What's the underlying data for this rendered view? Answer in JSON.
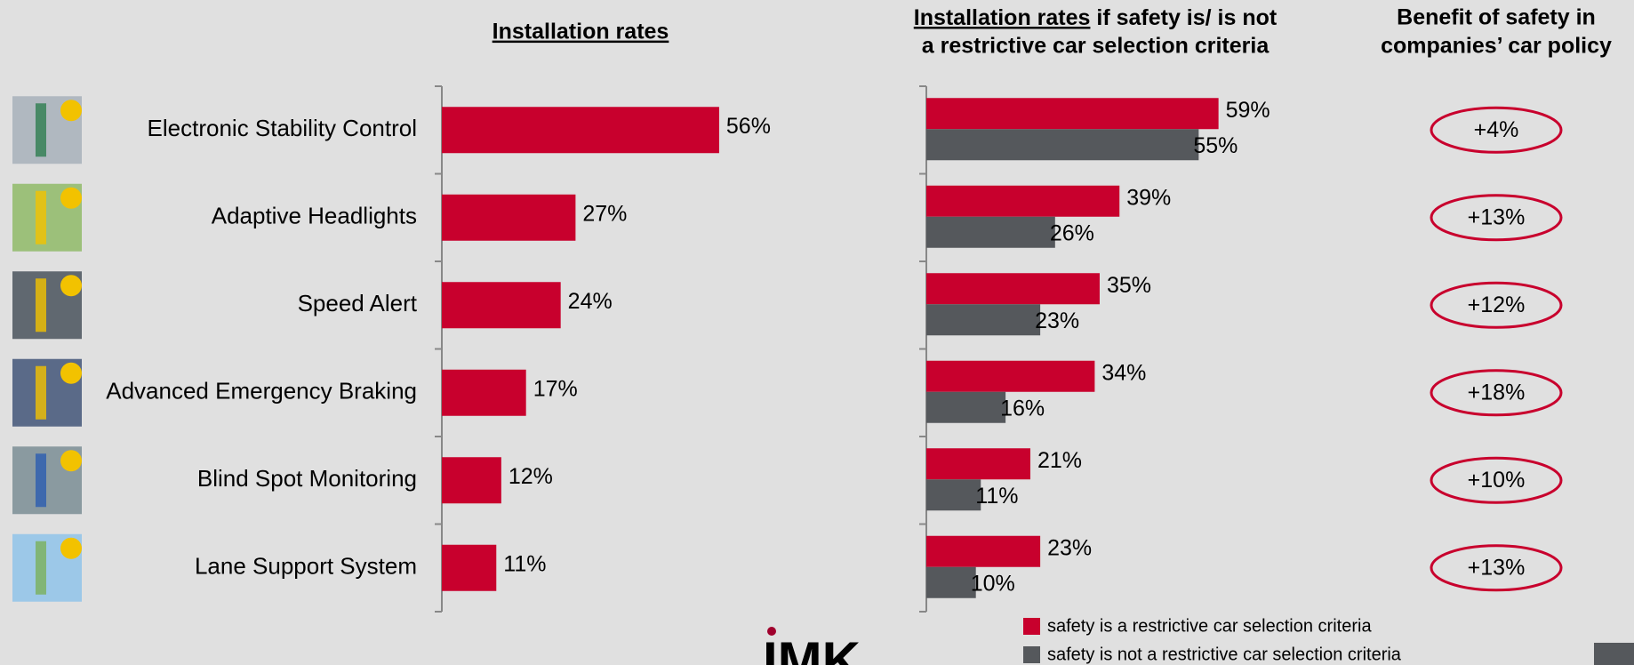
{
  "chart_data": [
    {
      "type": "bar",
      "orientation": "horizontal",
      "title": "Installation rates",
      "categories": [
        "Electronic Stability Control",
        "Adaptive Headlights",
        "Speed Alert",
        "Advanced Emergency Braking",
        "Blind Spot Monitoring",
        "Lane Support System"
      ],
      "values": [
        56,
        27,
        24,
        17,
        12,
        11
      ],
      "value_labels": [
        "56%",
        "27%",
        "24%",
        "17%",
        "12%",
        "11%"
      ],
      "color": "#c8002d",
      "xlim": [
        0,
        100
      ]
    },
    {
      "type": "grouped-bar",
      "orientation": "horizontal",
      "title": {
        "underlined": "Installation rates",
        "rest": " if safety is/ is not",
        "line2": "a restrictive car selection criteria"
      },
      "categories": [
        "Electronic Stability Control",
        "Adaptive Headlights",
        "Speed Alert",
        "Advanced Emergency Braking",
        "Blind Spot Monitoring",
        "Lane Support System"
      ],
      "series": [
        {
          "name": "safety is a restrictive car selection criteria",
          "color": "#c8002d",
          "values": [
            59,
            39,
            35,
            34,
            21,
            23
          ],
          "value_labels": [
            "59%",
            "39%",
            "35%",
            "34%",
            "21%",
            "23%"
          ]
        },
        {
          "name": "safety is not a restrictive car selection criteria",
          "color": "#55585c",
          "values": [
            55,
            26,
            23,
            16,
            11,
            10
          ],
          "value_labels": [
            "55%",
            "26%",
            "23%",
            "16%",
            "11%",
            "10%"
          ]
        }
      ],
      "xlim": [
        0,
        100
      ]
    },
    {
      "type": "label",
      "title": [
        "Benefit of safety in",
        "companies’ car policy"
      ],
      "values": [
        4,
        13,
        12,
        18,
        10,
        13
      ],
      "value_labels": [
        "+4%",
        "+13%",
        "+12%",
        "+18%",
        "+10%",
        "+13%"
      ],
      "color": "#c8002d"
    }
  ],
  "logo": "IMK"
}
